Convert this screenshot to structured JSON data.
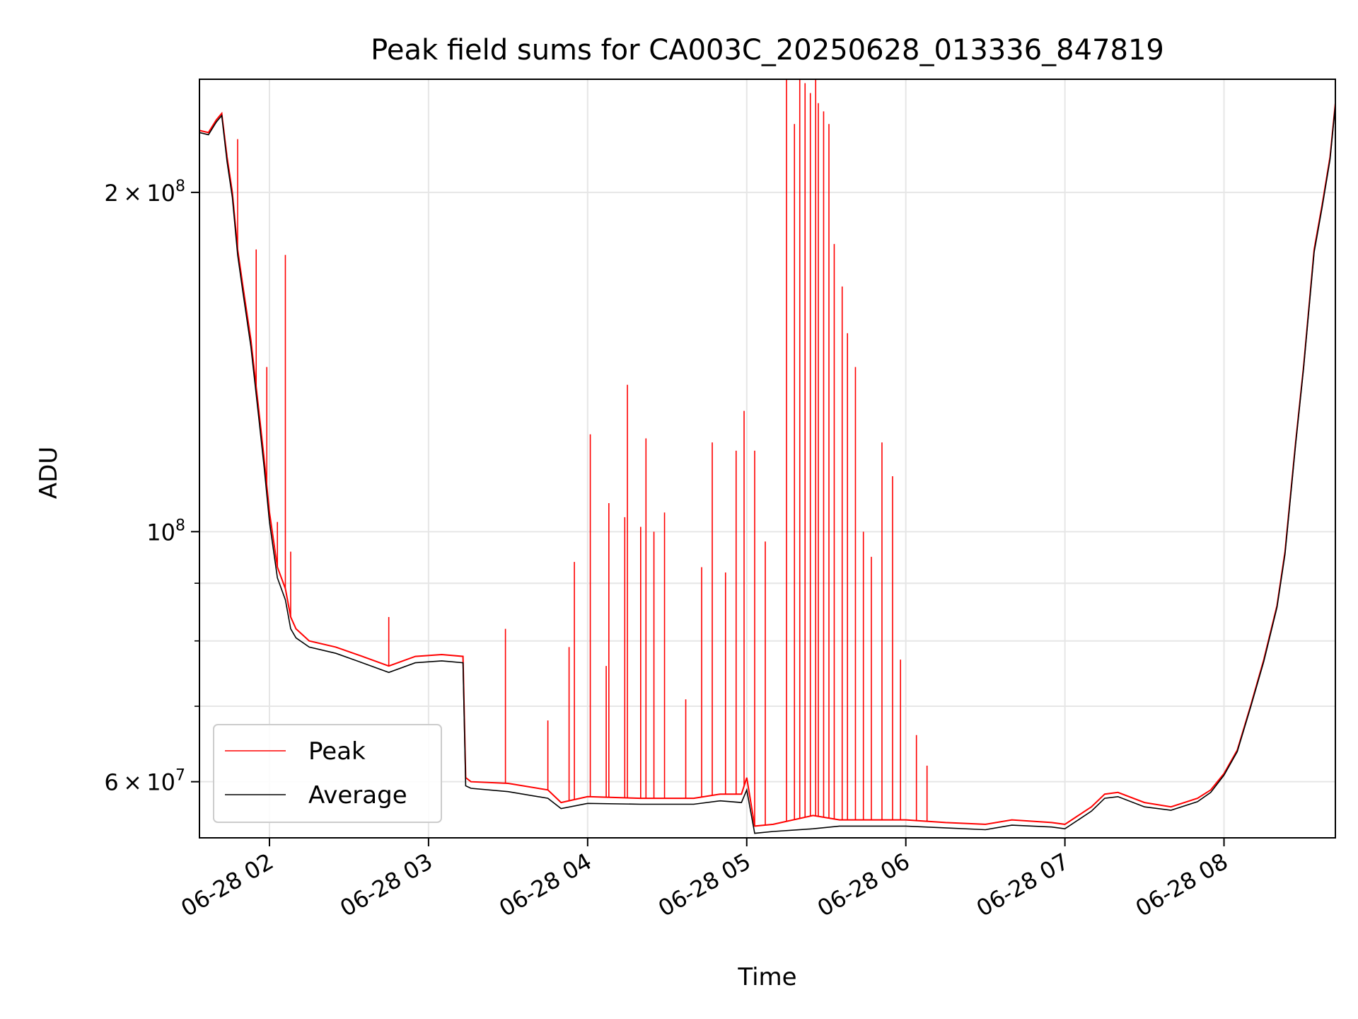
{
  "chart_data": {
    "type": "line",
    "title": "Peak field sums for CA003C_20250628_013336_847819",
    "xlabel": "Time",
    "ylabel": "ADU",
    "yscale": "log",
    "xlim": [
      "2025-06-28 01:33:36",
      "2025-06-28 08:42:00"
    ],
    "ylim": [
      53500000,
      252000000
    ],
    "x_ticks": [
      "06-28 02",
      "06-28 03",
      "06-28 04",
      "06-28 05",
      "06-28 06",
      "06-28 07",
      "06-28 08"
    ],
    "y_ticks_major": [
      {
        "value": 60000000,
        "mantissa": "6",
        "exponent": "7"
      },
      {
        "value": 100000000,
        "mantissa": "",
        "exponent": "8"
      },
      {
        "value": 200000000,
        "mantissa": "2",
        "exponent": "8"
      }
    ],
    "y_ticks_minor": [
      70000000,
      80000000,
      90000000
    ],
    "grid": true,
    "legend_position": "lower-left",
    "series": [
      {
        "name": "Peak",
        "color": "#ff0000",
        "x": [
          "2025-06-28 01:33:36",
          "2025-06-28 01:37",
          "2025-06-28 01:40",
          "2025-06-28 01:42",
          "2025-06-28 01:44",
          "2025-06-28 01:46",
          "2025-06-28 01:48",
          "2025-06-28 01:50",
          "2025-06-28 01:53",
          "2025-06-28 01:56",
          "2025-06-28 01:58",
          "2025-06-28 02:00",
          "2025-06-28 02:03",
          "2025-06-28 02:06",
          "2025-06-28 02:08",
          "2025-06-28 02:10",
          "2025-06-28 02:15",
          "2025-06-28 02:25",
          "2025-06-28 02:35",
          "2025-06-28 02:45",
          "2025-06-28 02:55",
          "2025-06-28 03:05",
          "2025-06-28 03:13",
          "2025-06-28 03:14",
          "2025-06-28 03:16",
          "2025-06-28 03:30",
          "2025-06-28 03:45",
          "2025-06-28 03:50",
          "2025-06-28 04:00",
          "2025-06-28 04:20",
          "2025-06-28 04:40",
          "2025-06-28 04:50",
          "2025-06-28 04:58",
          "2025-06-28 05:00",
          "2025-06-28 05:03",
          "2025-06-28 05:10",
          "2025-06-28 05:25",
          "2025-06-28 05:35",
          "2025-06-28 05:45",
          "2025-06-28 06:00",
          "2025-06-28 06:15",
          "2025-06-28 06:30",
          "2025-06-28 06:40",
          "2025-06-28 06:55",
          "2025-06-28 07:00",
          "2025-06-28 07:10",
          "2025-06-28 07:15",
          "2025-06-28 07:20",
          "2025-06-28 07:30",
          "2025-06-28 07:40",
          "2025-06-28 07:50",
          "2025-06-28 07:55",
          "2025-06-28 08:00",
          "2025-06-28 08:05",
          "2025-06-28 08:10",
          "2025-06-28 08:15",
          "2025-06-28 08:20",
          "2025-06-28 08:23",
          "2025-06-28 08:27",
          "2025-06-28 08:30",
          "2025-06-28 08:34",
          "2025-06-28 08:37",
          "2025-06-28 08:40",
          "2025-06-28 08:42"
        ],
        "y": [
          227000000,
          226000000,
          232000000,
          235000000,
          215000000,
          200000000,
          178000000,
          165000000,
          148000000,
          128000000,
          116000000,
          104000000,
          93000000,
          89000000,
          84000000,
          82000000,
          80000000,
          79000000,
          77500000,
          76000000,
          77500000,
          77800000,
          77500000,
          60500000,
          60000000,
          59800000,
          59000000,
          57500000,
          58200000,
          58000000,
          58000000,
          58500000,
          58500000,
          60500000,
          54800000,
          55000000,
          56000000,
          55500000,
          55500000,
          55500000,
          55200000,
          55000000,
          55500000,
          55200000,
          55000000,
          57000000,
          58500000,
          58700000,
          57500000,
          57000000,
          58000000,
          59000000,
          61000000,
          64000000,
          70000000,
          77000000,
          86000000,
          96000000,
          120000000,
          140000000,
          178000000,
          195000000,
          215000000,
          240000000
        ],
        "spikes": [
          [
            "2025-06-28 01:48",
            223000000
          ],
          [
            "2025-06-28 01:55",
            178000000
          ],
          [
            "2025-06-28 01:59",
            140000000
          ],
          [
            "2025-06-28 02:03",
            102000000
          ],
          [
            "2025-06-28 02:06",
            176000000
          ],
          [
            "2025-06-28 02:08",
            96000000
          ],
          [
            "2025-06-28 02:45",
            84000000
          ],
          [
            "2025-06-28 03:29",
            82000000
          ],
          [
            "2025-06-28 03:45",
            68000000
          ],
          [
            "2025-06-28 03:53",
            79000000
          ],
          [
            "2025-06-28 03:55",
            94000000
          ],
          [
            "2025-06-28 04:01",
            122000000
          ],
          [
            "2025-06-28 04:07",
            76000000
          ],
          [
            "2025-06-28 04:08",
            106000000
          ],
          [
            "2025-06-28 04:14",
            103000000
          ],
          [
            "2025-06-28 04:15",
            135000000
          ],
          [
            "2025-06-28 04:20",
            101000000
          ],
          [
            "2025-06-28 04:22",
            121000000
          ],
          [
            "2025-06-28 04:25",
            100000000
          ],
          [
            "2025-06-28 04:29",
            104000000
          ],
          [
            "2025-06-28 04:37",
            71000000
          ],
          [
            "2025-06-28 04:43",
            93000000
          ],
          [
            "2025-06-28 04:47",
            120000000
          ],
          [
            "2025-06-28 04:52",
            92000000
          ],
          [
            "2025-06-28 04:56",
            118000000
          ],
          [
            "2025-06-28 04:59",
            128000000
          ],
          [
            "2025-06-28 05:03",
            118000000
          ],
          [
            "2025-06-28 05:07",
            98000000
          ],
          [
            "2025-06-28 05:15",
            252000000
          ],
          [
            "2025-06-28 05:18",
            230000000
          ],
          [
            "2025-06-28 05:20",
            252000000
          ],
          [
            "2025-06-28 05:22",
            250000000
          ],
          [
            "2025-06-28 05:24",
            245000000
          ],
          [
            "2025-06-28 05:26",
            252000000
          ],
          [
            "2025-06-28 05:27",
            240000000
          ],
          [
            "2025-06-28 05:29",
            236000000
          ],
          [
            "2025-06-28 05:31",
            230000000
          ],
          [
            "2025-06-28 05:33",
            180000000
          ],
          [
            "2025-06-28 05:36",
            165000000
          ],
          [
            "2025-06-28 05:38",
            150000000
          ],
          [
            "2025-06-28 05:41",
            140000000
          ],
          [
            "2025-06-28 05:44",
            100000000
          ],
          [
            "2025-06-28 05:47",
            95000000
          ],
          [
            "2025-06-28 05:51",
            120000000
          ],
          [
            "2025-06-28 05:55",
            112000000
          ],
          [
            "2025-06-28 05:58",
            77000000
          ],
          [
            "2025-06-28 06:04",
            66000000
          ],
          [
            "2025-06-28 06:08",
            62000000
          ]
        ]
      },
      {
        "name": "Average",
        "color": "#000000",
        "x": [
          "2025-06-28 01:33:36",
          "2025-06-28 01:37",
          "2025-06-28 01:40",
          "2025-06-28 01:42",
          "2025-06-28 01:44",
          "2025-06-28 01:46",
          "2025-06-28 01:48",
          "2025-06-28 01:50",
          "2025-06-28 01:53",
          "2025-06-28 01:56",
          "2025-06-28 01:58",
          "2025-06-28 02:00",
          "2025-06-28 02:03",
          "2025-06-28 02:06",
          "2025-06-28 02:08",
          "2025-06-28 02:10",
          "2025-06-28 02:15",
          "2025-06-28 02:25",
          "2025-06-28 02:35",
          "2025-06-28 02:45",
          "2025-06-28 02:55",
          "2025-06-28 03:05",
          "2025-06-28 03:13",
          "2025-06-28 03:14",
          "2025-06-28 03:16",
          "2025-06-28 03:30",
          "2025-06-28 03:45",
          "2025-06-28 03:50",
          "2025-06-28 04:00",
          "2025-06-28 04:20",
          "2025-06-28 04:40",
          "2025-06-28 04:50",
          "2025-06-28 04:58",
          "2025-06-28 05:00",
          "2025-06-28 05:03",
          "2025-06-28 05:10",
          "2025-06-28 05:25",
          "2025-06-28 05:35",
          "2025-06-28 05:45",
          "2025-06-28 06:00",
          "2025-06-28 06:15",
          "2025-06-28 06:30",
          "2025-06-28 06:40",
          "2025-06-28 06:55",
          "2025-06-28 07:00",
          "2025-06-28 07:10",
          "2025-06-28 07:15",
          "2025-06-28 07:20",
          "2025-06-28 07:30",
          "2025-06-28 07:40",
          "2025-06-28 07:50",
          "2025-06-28 07:55",
          "2025-06-28 08:00",
          "2025-06-28 08:05",
          "2025-06-28 08:10",
          "2025-06-28 08:15",
          "2025-06-28 08:20",
          "2025-06-28 08:23",
          "2025-06-28 08:27",
          "2025-06-28 08:30",
          "2025-06-28 08:34",
          "2025-06-28 08:37",
          "2025-06-28 08:40",
          "2025-06-28 08:42"
        ],
        "y": [
          226000000,
          225000000,
          231000000,
          234000000,
          213000000,
          198000000,
          176000000,
          163000000,
          146000000,
          126000000,
          114000000,
          102000000,
          91000000,
          87000000,
          82000000,
          80500000,
          79000000,
          78000000,
          76500000,
          75000000,
          76500000,
          76800000,
          76500000,
          59500000,
          59200000,
          58800000,
          58000000,
          56800000,
          57400000,
          57300000,
          57300000,
          57700000,
          57500000,
          59000000,
          54000000,
          54200000,
          54500000,
          54800000,
          54800000,
          54800000,
          54600000,
          54400000,
          54900000,
          54700000,
          54500000,
          56500000,
          58000000,
          58200000,
          57000000,
          56600000,
          57600000,
          58700000,
          60800000,
          63800000,
          69800000,
          76700000,
          85700000,
          95500000,
          119500000,
          139500000,
          177000000,
          194000000,
          214000000,
          239000000
        ]
      }
    ]
  },
  "legend": {
    "items": [
      {
        "label": "Peak",
        "color": "#ff0000"
      },
      {
        "label": "Average",
        "color": "#000000"
      }
    ]
  }
}
